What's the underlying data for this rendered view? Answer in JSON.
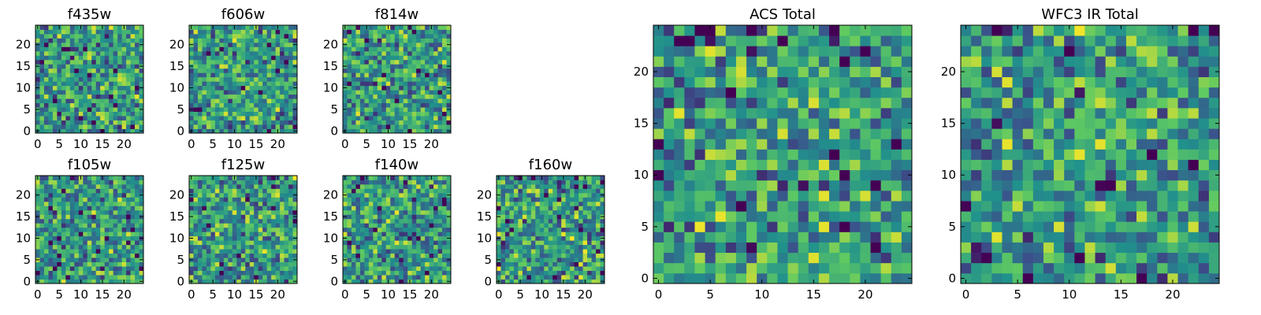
{
  "chart_data": [
    {
      "type": "heatmap",
      "title": "f435w",
      "xticks": [
        "0",
        "5",
        "10",
        "15",
        "20"
      ],
      "yticks": [
        "0",
        "5",
        "10",
        "15",
        "20"
      ],
      "xlim": [
        -0.5,
        24.5
      ],
      "ylim": [
        -0.5,
        24.5
      ],
      "grid_size": 25,
      "colormap": "viridis",
      "grid": false
    },
    {
      "type": "heatmap",
      "title": "f606w",
      "xticks": [
        "0",
        "5",
        "10",
        "15",
        "20"
      ],
      "yticks": [
        "0",
        "5",
        "10",
        "15",
        "20"
      ],
      "xlim": [
        -0.5,
        24.5
      ],
      "ylim": [
        -0.5,
        24.5
      ],
      "grid_size": 25,
      "colormap": "viridis",
      "grid": false
    },
    {
      "type": "heatmap",
      "title": "f814w",
      "xticks": [
        "0",
        "5",
        "10",
        "15",
        "20"
      ],
      "yticks": [
        "0",
        "5",
        "10",
        "15",
        "20"
      ],
      "xlim": [
        -0.5,
        24.5
      ],
      "ylim": [
        -0.5,
        24.5
      ],
      "grid_size": 25,
      "colormap": "viridis",
      "grid": false
    },
    {
      "type": "heatmap",
      "title": "f105w",
      "xticks": [
        "0",
        "5",
        "10",
        "15",
        "20"
      ],
      "yticks": [
        "0",
        "5",
        "10",
        "15",
        "20"
      ],
      "xlim": [
        -0.5,
        24.5
      ],
      "ylim": [
        -0.5,
        24.5
      ],
      "grid_size": 25,
      "colormap": "viridis",
      "grid": false
    },
    {
      "type": "heatmap",
      "title": "f125w",
      "xticks": [
        "0",
        "5",
        "10",
        "15",
        "20"
      ],
      "yticks": [
        "0",
        "5",
        "10",
        "15",
        "20"
      ],
      "xlim": [
        -0.5,
        24.5
      ],
      "ylim": [
        -0.5,
        24.5
      ],
      "grid_size": 25,
      "colormap": "viridis",
      "grid": false
    },
    {
      "type": "heatmap",
      "title": "f140w",
      "xticks": [
        "0",
        "5",
        "10",
        "15",
        "20"
      ],
      "yticks": [
        "0",
        "5",
        "10",
        "15",
        "20"
      ],
      "xlim": [
        -0.5,
        24.5
      ],
      "ylim": [
        -0.5,
        24.5
      ],
      "grid_size": 25,
      "colormap": "viridis",
      "grid": false
    },
    {
      "type": "heatmap",
      "title": "f160w",
      "xticks": [
        "0",
        "5",
        "10",
        "15",
        "20"
      ],
      "yticks": [
        "0",
        "5",
        "10",
        "15",
        "20"
      ],
      "xlim": [
        -0.5,
        24.5
      ],
      "ylim": [
        -0.5,
        24.5
      ],
      "grid_size": 25,
      "colormap": "viridis",
      "grid": false
    },
    {
      "type": "heatmap",
      "title": "ACS Total",
      "xticks": [
        "0",
        "5",
        "10",
        "15",
        "20"
      ],
      "yticks": [
        "0",
        "5",
        "10",
        "15",
        "20"
      ],
      "xlim": [
        -0.5,
        24.5
      ],
      "ylim": [
        -0.5,
        24.5
      ],
      "grid_size": 25,
      "colormap": "viridis",
      "grid": false
    },
    {
      "type": "heatmap",
      "title": "WFC3 IR Total",
      "xticks": [
        "0",
        "5",
        "10",
        "15",
        "20"
      ],
      "yticks": [
        "0",
        "5",
        "10",
        "15",
        "20"
      ],
      "xlim": [
        -0.5,
        24.5
      ],
      "ylim": [
        -0.5,
        24.5
      ],
      "grid_size": 25,
      "colormap": "viridis",
      "grid": false
    }
  ]
}
